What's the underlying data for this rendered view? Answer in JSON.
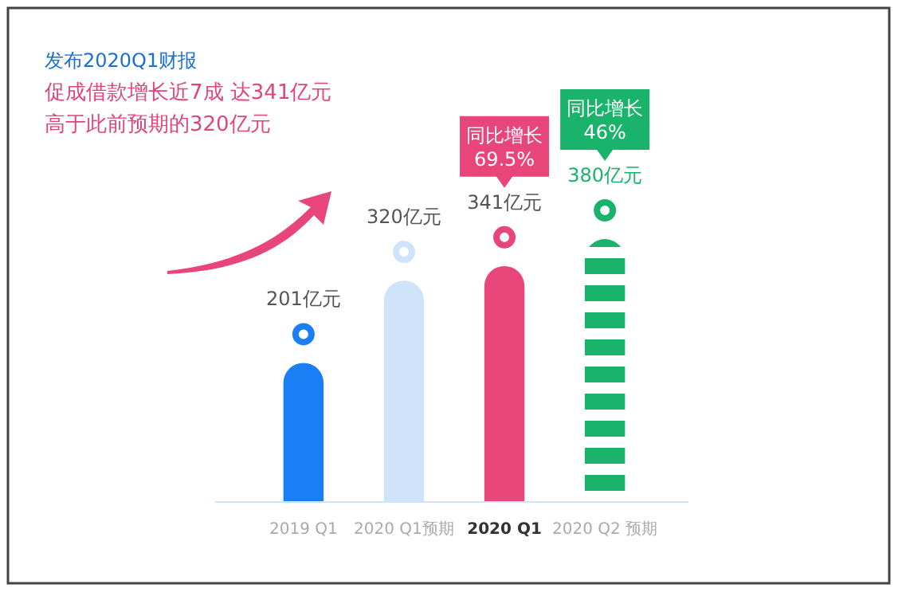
{
  "chart_data": {
    "type": "bar",
    "title": "发布2020Q1财报",
    "subtitle": "促成借款增长近7成 达341亿元",
    "annotations": [
      "高于此前预期的320亿元",
      "同比增长\n69.5%",
      "同比增长\n46%"
    ],
    "categories": [
      "2019 Q1",
      "2020 Q1预期",
      "2020 Q1",
      "2020 Q2 预期"
    ],
    "values": [
      201,
      320,
      341,
      380
    ],
    "value_labels": [
      "201亿元",
      "320亿元",
      "341亿元",
      "380亿元"
    ],
    "colors": [
      "#1a7ef5",
      "#cfe3fa",
      "#e8457a",
      "#19b36b"
    ]
  }
}
